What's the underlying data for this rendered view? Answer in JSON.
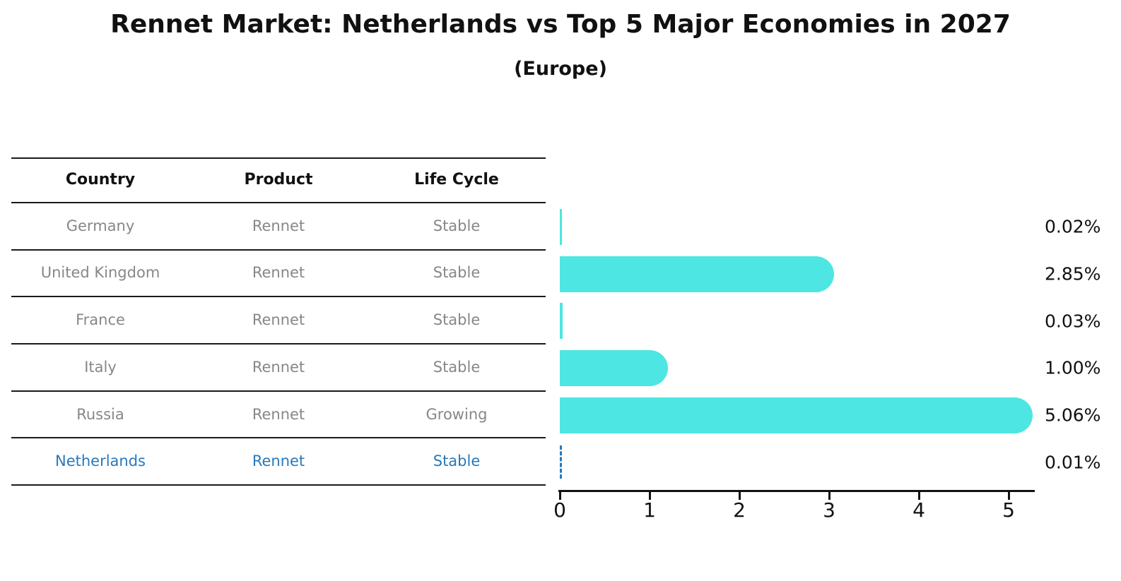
{
  "title": "Rennet Market: Netherlands vs Top 5 Major Economies in 2027",
  "subtitle": "(Europe)",
  "table": {
    "headers": [
      "Country",
      "Product",
      "Life Cycle"
    ],
    "rows": [
      {
        "country": "Germany",
        "product": "Rennet",
        "life_cycle": "Stable",
        "highlighted": false
      },
      {
        "country": "United Kingdom",
        "product": "Rennet",
        "life_cycle": "Stable",
        "highlighted": false
      },
      {
        "country": "France",
        "product": "Rennet",
        "life_cycle": "Stable",
        "highlighted": false
      },
      {
        "country": "Italy",
        "product": "Rennet",
        "life_cycle": "Stable",
        "highlighted": false
      },
      {
        "country": "Russia",
        "product": "Rennet",
        "life_cycle": "Growing",
        "highlighted": false
      },
      {
        "country": "Netherlands",
        "product": "Rennet",
        "life_cycle": "Stable",
        "highlighted": true
      }
    ]
  },
  "chart_data": {
    "type": "bar",
    "orientation": "horizontal",
    "title": "Rennet Market: Netherlands vs Top 5 Major Economies in 2027",
    "subtitle": "(Europe)",
    "categories": [
      "Germany",
      "United Kingdom",
      "France",
      "Italy",
      "Russia",
      "Netherlands"
    ],
    "values": [
      0.02,
      2.85,
      0.03,
      1.0,
      5.06,
      0.01
    ],
    "labels": [
      "0.02%",
      "2.85%",
      "0.03%",
      "1.00%",
      "5.06%",
      "0.01%"
    ],
    "xticks": [
      0,
      1,
      2,
      3,
      4,
      5
    ],
    "xlim": [
      0,
      5.3
    ],
    "grid": false,
    "legend": "none",
    "bar_color": "#4DE6E2",
    "highlight_index": 5,
    "highlight_color": "#2779BD",
    "highlight_style": "dashed-outline"
  },
  "colors": {
    "bar": "#4DE6E2",
    "highlight": "#2779BD",
    "table_text": "#878787",
    "heading_text": "#111111",
    "axis": "#111111",
    "background": "#FFFFFF"
  }
}
